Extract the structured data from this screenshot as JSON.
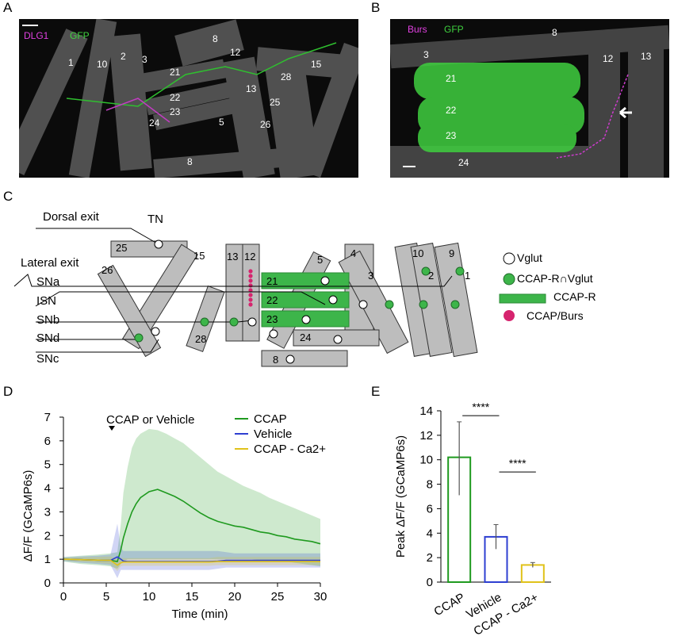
{
  "panels": {
    "a": "A",
    "b": "B",
    "c": "C",
    "d": "D",
    "e": "E"
  },
  "panel_a": {
    "channels": [
      "DLG1",
      "GFP"
    ],
    "muscle_labels": [
      "1",
      "10",
      "2",
      "3",
      "8",
      "12",
      "15",
      "21",
      "22",
      "23",
      "24",
      "5",
      "13",
      "28",
      "25",
      "26",
      "8"
    ]
  },
  "panel_b": {
    "channels": [
      "Burs",
      "GFP"
    ],
    "muscle_labels": [
      "3",
      "8",
      "12",
      "13",
      "21",
      "22",
      "23",
      "24"
    ]
  },
  "panel_c": {
    "exits": [
      "Dorsal exit",
      "Lateral exit"
    ],
    "nerves": [
      "TN",
      "SNa",
      "ISN",
      "SNb",
      "SNd",
      "SNc"
    ],
    "muscles": [
      "25",
      "15",
      "26",
      "13",
      "12",
      "28",
      "21",
      "22",
      "23",
      "5",
      "24",
      "8",
      "4",
      "3",
      "10",
      "2",
      "9",
      "1"
    ],
    "legend": [
      {
        "label": "Vglut",
        "symbol": "open-circle",
        "color": "#ffffff"
      },
      {
        "label": "CCAP-R∩Vglut",
        "symbol": "filled-circle",
        "color": "#3db54a"
      },
      {
        "label": "CCAP-R",
        "symbol": "bar",
        "color": "#3db54a"
      },
      {
        "label": "CCAP/Burs",
        "symbol": "filled-circle",
        "color": "#d6246e"
      }
    ]
  },
  "chart_data": [
    {
      "type": "line",
      "annotation": "CCAP or Vehicle",
      "xlabel": "Time (min)",
      "ylabel": "ΔF/F (GCaMP6s)",
      "xlim": [
        0,
        30
      ],
      "ylim": [
        0,
        7
      ],
      "xticks": [
        0,
        5,
        10,
        15,
        20,
        25,
        30
      ],
      "yticks": [
        0,
        1,
        2,
        3,
        4,
        5,
        6,
        7
      ],
      "legend_position": "top-right",
      "x": [
        0,
        2,
        4,
        5.5,
        6.3,
        6.7,
        7,
        7.5,
        8,
        8.5,
        9,
        10,
        11,
        12,
        13,
        14,
        15,
        16,
        17,
        18,
        19,
        20,
        21,
        22,
        23,
        24,
        25,
        26,
        27,
        28,
        29,
        30
      ],
      "series": [
        {
          "name": "CCAP",
          "color": "#1f9a1f",
          "values": [
            1.0,
            0.98,
            0.96,
            0.95,
            0.9,
            1.4,
            1.9,
            2.5,
            3.0,
            3.35,
            3.6,
            3.85,
            3.95,
            3.8,
            3.65,
            3.45,
            3.2,
            2.95,
            2.75,
            2.6,
            2.5,
            2.4,
            2.35,
            2.25,
            2.15,
            2.1,
            2.0,
            1.95,
            1.85,
            1.8,
            1.75,
            1.65
          ],
          "upper": [
            1.1,
            1.15,
            1.2,
            1.25,
            1.3,
            2.5,
            3.8,
            4.9,
            5.7,
            6.1,
            6.3,
            6.5,
            6.45,
            6.3,
            6.1,
            5.9,
            5.6,
            5.3,
            5.0,
            4.7,
            4.5,
            4.3,
            4.1,
            3.95,
            3.8,
            3.6,
            3.45,
            3.3,
            3.15,
            3.0,
            2.85,
            2.7
          ],
          "lower": [
            0.9,
            0.8,
            0.75,
            0.7,
            0.6,
            0.8,
            0.9,
            1.0,
            1.0,
            1.0,
            1.0,
            1.0,
            1.0,
            1.0,
            1.0,
            1.0,
            1.0,
            1.0,
            1.0,
            1.0,
            1.0,
            1.0,
            1.0,
            1.0,
            0.95,
            0.95,
            0.9,
            0.9,
            0.85,
            0.8,
            0.75,
            0.7
          ]
        },
        {
          "name": "Vehicle",
          "color": "#2e3fd1",
          "values": [
            1.0,
            0.98,
            0.96,
            0.95,
            1.1,
            1.0,
            0.92,
            0.9,
            0.9,
            0.9,
            0.9,
            0.9,
            0.9,
            0.9,
            0.9,
            0.9,
            0.9,
            0.9,
            0.9,
            0.92,
            0.95,
            0.95,
            0.95,
            0.95,
            0.95,
            0.95,
            0.95,
            0.95,
            0.95,
            0.95,
            0.95,
            0.95
          ],
          "upper": [
            1.08,
            1.12,
            1.15,
            1.2,
            2.5,
            1.5,
            1.35,
            1.35,
            1.35,
            1.35,
            1.35,
            1.35,
            1.35,
            1.35,
            1.35,
            1.35,
            1.35,
            1.35,
            1.35,
            1.35,
            1.3,
            1.25,
            1.25,
            1.25,
            1.25,
            1.25,
            1.25,
            1.25,
            1.25,
            1.25,
            1.25,
            1.25
          ],
          "lower": [
            0.92,
            0.85,
            0.8,
            0.75,
            0.2,
            0.55,
            0.55,
            0.55,
            0.55,
            0.55,
            0.55,
            0.55,
            0.55,
            0.55,
            0.55,
            0.55,
            0.55,
            0.55,
            0.55,
            0.6,
            0.65,
            0.65,
            0.65,
            0.65,
            0.65,
            0.65,
            0.65,
            0.65,
            0.65,
            0.65,
            0.65,
            0.65
          ]
        },
        {
          "name": "CCAP - Ca2+",
          "color": "#e0c21a",
          "values": [
            1.0,
            0.98,
            0.96,
            0.95,
            0.75,
            0.85,
            0.88,
            0.88,
            0.88,
            0.88,
            0.88,
            0.88,
            0.88,
            0.88,
            0.88,
            0.88,
            0.88,
            0.88,
            0.88,
            0.9,
            0.9,
            0.9,
            0.9,
            0.9,
            0.9,
            0.9,
            0.9,
            0.9,
            0.9,
            0.9,
            0.9,
            0.9
          ],
          "upper": [
            1.05,
            1.08,
            1.1,
            1.12,
            1.0,
            1.05,
            1.05,
            1.05,
            1.05,
            1.05,
            1.05,
            1.05,
            1.05,
            1.05,
            1.05,
            1.05,
            1.05,
            1.05,
            1.05,
            1.1,
            1.1,
            1.1,
            1.1,
            1.1,
            1.1,
            1.1,
            1.1,
            1.1,
            1.1,
            1.1,
            1.1,
            1.1
          ],
          "lower": [
            0.95,
            0.9,
            0.85,
            0.8,
            0.5,
            0.7,
            0.72,
            0.72,
            0.72,
            0.72,
            0.72,
            0.72,
            0.72,
            0.72,
            0.72,
            0.72,
            0.72,
            0.72,
            0.72,
            0.75,
            0.75,
            0.75,
            0.75,
            0.75,
            0.75,
            0.75,
            0.75,
            0.75,
            0.75,
            0.75,
            0.75,
            0.75
          ]
        }
      ]
    },
    {
      "type": "bar",
      "ylabel": "Peak ΔF/F (GCaMP6s)",
      "ylim": [
        0,
        14
      ],
      "yticks": [
        0,
        2,
        4,
        6,
        8,
        10,
        12,
        14
      ],
      "categories": [
        "CCAP",
        "Vehicle",
        "CCAP - Ca2+"
      ],
      "values": [
        10.2,
        3.7,
        1.4
      ],
      "error_upper": [
        13.1,
        4.7,
        1.6
      ],
      "error_lower": [
        7.1,
        2.7,
        1.2
      ],
      "colors": [
        "#1f9a1f",
        "#2e3fd1",
        "#e0c21a"
      ],
      "significance": [
        "****",
        "****"
      ]
    }
  ]
}
